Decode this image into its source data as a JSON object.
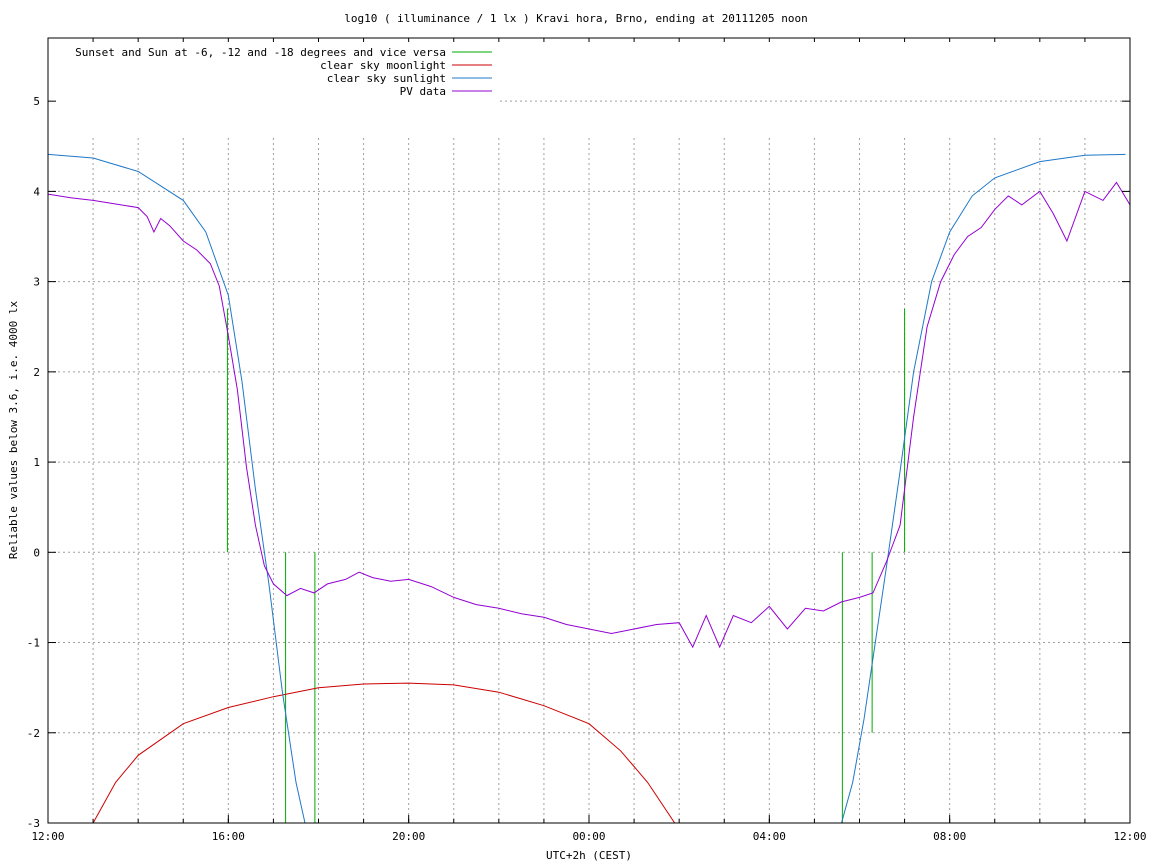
{
  "chart_data": {
    "type": "line",
    "title": "log10 ( illuminance / 1 lx ) Kravi hora, Brno, ending at 20111205 noon",
    "xlabel": "UTC+2h (CEST)",
    "ylabel": "Reliable values below 3.6, i.e. 4000 lx",
    "xlim": [
      0,
      24
    ],
    "ylim": [
      -3,
      5.7
    ],
    "grid": true,
    "legend_position": "top-left",
    "x_ticks": [
      {
        "value": 0,
        "label": "12:00"
      },
      {
        "value": 4,
        "label": "16:00"
      },
      {
        "value": 8,
        "label": "20:00"
      },
      {
        "value": 12,
        "label": "00:00"
      },
      {
        "value": 16,
        "label": "04:00"
      },
      {
        "value": 20,
        "label": "08:00"
      },
      {
        "value": 24,
        "label": "12:00"
      }
    ],
    "y_ticks": [
      {
        "value": -3,
        "label": "-3"
      },
      {
        "value": -2,
        "label": "-2"
      },
      {
        "value": -1,
        "label": "-1"
      },
      {
        "value": 0,
        "label": "0"
      },
      {
        "value": 1,
        "label": "1"
      },
      {
        "value": 2,
        "label": "2"
      },
      {
        "value": 3,
        "label": "3"
      },
      {
        "value": 4,
        "label": "4"
      },
      {
        "value": 5,
        "label": "5"
      }
    ],
    "series": [
      {
        "name": "Sunset and Sun at -6, -12 and -18 degrees and vice versa",
        "color": "#00aa00",
        "style": "impulses",
        "base": 0,
        "points": [
          [
            3.98,
            2.7
          ],
          [
            5.27,
            -3.0
          ],
          [
            5.92,
            -3.0
          ],
          [
            17.62,
            -3.0
          ],
          [
            18.28,
            -2.0
          ],
          [
            19.0,
            2.7
          ]
        ]
      },
      {
        "name": "clear sky moonlight",
        "color": "#cc0000",
        "style": "line",
        "points": [
          [
            1.0,
            -3.0
          ],
          [
            1.5,
            -2.55
          ],
          [
            2.0,
            -2.25
          ],
          [
            3.0,
            -1.9
          ],
          [
            4.0,
            -1.72
          ],
          [
            5.0,
            -1.6
          ],
          [
            6.0,
            -1.5
          ],
          [
            7.0,
            -1.46
          ],
          [
            8.0,
            -1.45
          ],
          [
            9.0,
            -1.47
          ],
          [
            10.0,
            -1.55
          ],
          [
            11.0,
            -1.7
          ],
          [
            12.0,
            -1.9
          ],
          [
            12.7,
            -2.2
          ],
          [
            13.3,
            -2.55
          ],
          [
            13.9,
            -3.0
          ]
        ]
      },
      {
        "name": "clear sky sunlight",
        "color": "#1f78c8",
        "style": "line",
        "points": [
          [
            0.0,
            4.41
          ],
          [
            1.0,
            4.37
          ],
          [
            2.0,
            4.22
          ],
          [
            3.0,
            3.9
          ],
          [
            3.5,
            3.55
          ],
          [
            4.0,
            2.85
          ],
          [
            4.3,
            1.9
          ],
          [
            4.6,
            0.7
          ],
          [
            4.9,
            -0.35
          ],
          [
            5.2,
            -1.55
          ],
          [
            5.5,
            -2.55
          ],
          [
            5.7,
            -3.0
          ],
          [
            17.6,
            -3.0
          ],
          [
            17.85,
            -2.55
          ],
          [
            18.1,
            -1.85
          ],
          [
            18.35,
            -1.0
          ],
          [
            18.6,
            -0.15
          ],
          [
            18.9,
            0.9
          ],
          [
            19.2,
            2.0
          ],
          [
            19.6,
            3.0
          ],
          [
            20.0,
            3.55
          ],
          [
            20.5,
            3.95
          ],
          [
            21.0,
            4.15
          ],
          [
            22.0,
            4.33
          ],
          [
            23.0,
            4.4
          ],
          [
            23.9,
            4.41
          ]
        ]
      },
      {
        "name": "PV data",
        "color": "#9400d3",
        "style": "line",
        "points": [
          [
            0.0,
            3.97
          ],
          [
            0.5,
            3.93
          ],
          [
            1.0,
            3.9
          ],
          [
            1.5,
            3.86
          ],
          [
            2.0,
            3.82
          ],
          [
            2.2,
            3.72
          ],
          [
            2.35,
            3.55
          ],
          [
            2.5,
            3.7
          ],
          [
            2.7,
            3.62
          ],
          [
            3.0,
            3.45
          ],
          [
            3.3,
            3.35
          ],
          [
            3.6,
            3.2
          ],
          [
            3.8,
            2.95
          ],
          [
            4.0,
            2.4
          ],
          [
            4.2,
            1.8
          ],
          [
            4.4,
            0.95
          ],
          [
            4.6,
            0.3
          ],
          [
            4.8,
            -0.15
          ],
          [
            5.0,
            -0.35
          ],
          [
            5.3,
            -0.48
          ],
          [
            5.6,
            -0.4
          ],
          [
            5.9,
            -0.45
          ],
          [
            6.2,
            -0.35
          ],
          [
            6.6,
            -0.3
          ],
          [
            6.9,
            -0.22
          ],
          [
            7.2,
            -0.28
          ],
          [
            7.6,
            -0.32
          ],
          [
            8.0,
            -0.3
          ],
          [
            8.5,
            -0.38
          ],
          [
            9.0,
            -0.5
          ],
          [
            9.5,
            -0.58
          ],
          [
            10.0,
            -0.62
          ],
          [
            10.5,
            -0.68
          ],
          [
            11.0,
            -0.72
          ],
          [
            11.5,
            -0.8
          ],
          [
            12.0,
            -0.85
          ],
          [
            12.5,
            -0.9
          ],
          [
            13.0,
            -0.85
          ],
          [
            13.5,
            -0.8
          ],
          [
            14.0,
            -0.78
          ],
          [
            14.3,
            -1.05
          ],
          [
            14.6,
            -0.7
          ],
          [
            14.9,
            -1.05
          ],
          [
            15.2,
            -0.7
          ],
          [
            15.6,
            -0.78
          ],
          [
            16.0,
            -0.6
          ],
          [
            16.4,
            -0.85
          ],
          [
            16.8,
            -0.62
          ],
          [
            17.2,
            -0.65
          ],
          [
            17.6,
            -0.55
          ],
          [
            18.0,
            -0.5
          ],
          [
            18.3,
            -0.45
          ],
          [
            18.6,
            -0.1
          ],
          [
            18.9,
            0.3
          ],
          [
            19.2,
            1.5
          ],
          [
            19.5,
            2.5
          ],
          [
            19.8,
            3.0
          ],
          [
            20.1,
            3.3
          ],
          [
            20.4,
            3.5
          ],
          [
            20.7,
            3.6
          ],
          [
            21.0,
            3.8
          ],
          [
            21.3,
            3.95
          ],
          [
            21.6,
            3.85
          ],
          [
            22.0,
            4.0
          ],
          [
            22.3,
            3.75
          ],
          [
            22.6,
            3.45
          ],
          [
            23.0,
            4.0
          ],
          [
            23.4,
            3.9
          ],
          [
            23.7,
            4.1
          ],
          [
            24.0,
            3.85
          ]
        ]
      }
    ]
  }
}
